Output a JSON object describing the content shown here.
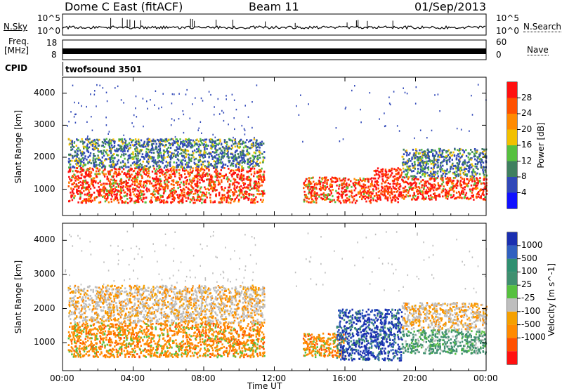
{
  "header": {
    "station": "Dome C East (fitACF)",
    "beam": "Beam 11",
    "date": "01/Sep/2013"
  },
  "left_labels": {
    "nsky": "N.Sky",
    "nsky_top": "10^5",
    "nsky_bottom": "10^0",
    "freq": "Freq.",
    "freq_unit": "[MHz]",
    "freq_hi": "18",
    "freq_lo": "8",
    "cpid": "CPID",
    "cpid_value": "twofsound 3501"
  },
  "right_labels": {
    "nsearch": "N.Search",
    "nsearch_top": "10^5",
    "nsearch_bottom": "10^0",
    "nave": "Nave",
    "nave_hi": "60",
    "nave_lo": "0"
  },
  "colors": {
    "power_scale": [
      "#1010ff",
      "#3048b8",
      "#3f7f5f",
      "#56c03f",
      "#f2c000",
      "#ff8a00",
      "#ff5000",
      "#ff1010"
    ],
    "velocity_scale": [
      "#ff1010",
      "#ff5000",
      "#ff8a00",
      "#f5a000",
      "#bebebe",
      "#56c03f",
      "#3f8f6f",
      "#2f8f70",
      "#3060c0",
      "#1a2fb0"
    ]
  },
  "chart_data": [
    {
      "type": "heatmap",
      "title": "",
      "xlabel": "",
      "ylabel": "Slant Range [km]",
      "x_ticks": [
        "00:00",
        "04:00",
        "08:00",
        "12:00",
        "16:00",
        "20:00",
        "00:00"
      ],
      "xlim_hours": [
        0,
        24
      ],
      "y_ticks": [
        "1000",
        "2000",
        "3000",
        "4000"
      ],
      "ylim_km": [
        180,
        4500
      ],
      "colorbar": {
        "label": "Power [dB]",
        "ticks": [
          "4",
          "8",
          "12",
          "16",
          "20",
          "24",
          "28"
        ]
      },
      "regions": [
        {
          "x": [
            0.3,
            11.4
          ],
          "y": [
            600,
            1700
          ],
          "level": "high"
        },
        {
          "x": [
            0.3,
            11.4
          ],
          "y": [
            1700,
            2600
          ],
          "level": "mixed"
        },
        {
          "x": [
            13.6,
            17.6
          ],
          "y": [
            600,
            1400
          ],
          "level": "high"
        },
        {
          "x": [
            17.6,
            19.2
          ],
          "y": [
            600,
            1700
          ],
          "level": "streaks"
        },
        {
          "x": [
            19.2,
            24.0
          ],
          "y": [
            700,
            1400
          ],
          "level": "high"
        },
        {
          "x": [
            19.2,
            24.0
          ],
          "y": [
            1400,
            2300
          ],
          "level": "mixed"
        }
      ]
    },
    {
      "type": "heatmap",
      "title": "",
      "xlabel": "Time UT",
      "ylabel": "Slant Range [km]",
      "x_ticks": [
        "00:00",
        "04:00",
        "08:00",
        "12:00",
        "16:00",
        "20:00",
        "00:00"
      ],
      "xlim_hours": [
        0,
        24
      ],
      "y_ticks": [
        "1000",
        "2000",
        "3000",
        "4000"
      ],
      "ylim_km": [
        180,
        4500
      ],
      "colorbar": {
        "label": "Velocity [m s^-1]",
        "ticks": [
          "1000",
          "500",
          "100",
          "25",
          "-25",
          "-100",
          "-500",
          "-1000"
        ]
      },
      "regions": [
        {
          "x": [
            0.3,
            11.4
          ],
          "y": [
            600,
            1600
          ],
          "level": "negative"
        },
        {
          "x": [
            0.3,
            11.4
          ],
          "y": [
            1600,
            2700
          ],
          "level": "near-zero"
        },
        {
          "x": [
            13.6,
            16.0
          ],
          "y": [
            600,
            1300
          ],
          "level": "negative"
        },
        {
          "x": [
            15.5,
            19.2
          ],
          "y": [
            500,
            2000
          ],
          "level": "positive-streaks"
        },
        {
          "x": [
            19.2,
            24.0
          ],
          "y": [
            700,
            1400
          ],
          "level": "positive"
        },
        {
          "x": [
            19.2,
            24.0
          ],
          "y": [
            1400,
            2200
          ],
          "level": "near-zero"
        }
      ]
    }
  ]
}
